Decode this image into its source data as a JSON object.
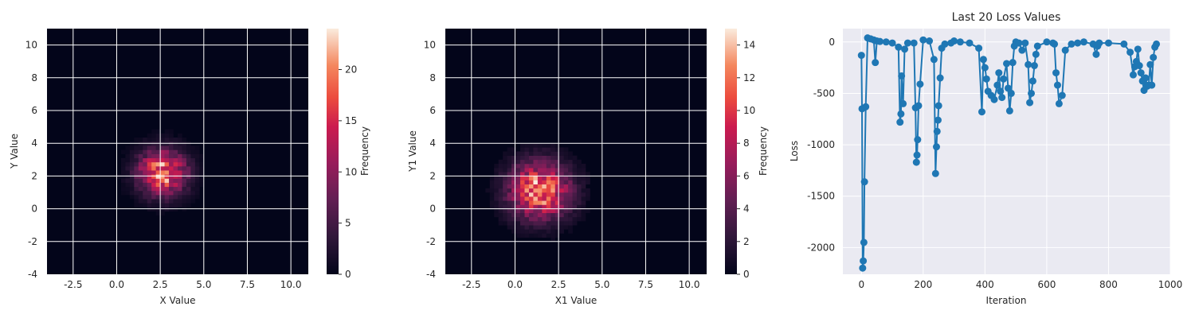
{
  "chart_data": [
    {
      "type": "heatmap",
      "title": "",
      "xlabel": "X Value",
      "ylabel": "Y Value",
      "xlim": [
        -4,
        11
      ],
      "ylim": [
        -4,
        11
      ],
      "xticks": [
        "-2.5",
        "0.0",
        "2.5",
        "5.0",
        "7.5",
        "10.0"
      ],
      "yticks": [
        "-4",
        "-2",
        "0",
        "2",
        "4",
        "6",
        "8",
        "10"
      ],
      "colorbar_label": "Frequency",
      "colorbar_range": [
        0,
        24
      ],
      "colorbar_ticks": [
        "0",
        "5",
        "10",
        "15",
        "20"
      ],
      "grid": true,
      "peak": {
        "x": 2.5,
        "y": 2.1,
        "spread": 0.95,
        "max": 24
      }
    },
    {
      "type": "heatmap",
      "title": "",
      "xlabel": "X1 Value",
      "ylabel": "Y1 Value",
      "xlim": [
        -4,
        11
      ],
      "ylim": [
        -4,
        11
      ],
      "xticks": [
        "-2.5",
        "0.0",
        "2.5",
        "5.0",
        "7.5",
        "10.0"
      ],
      "yticks": [
        "-4",
        "-2",
        "0",
        "2",
        "4",
        "6",
        "8",
        "10"
      ],
      "colorbar_label": "Frequency",
      "colorbar_range": [
        0,
        15
      ],
      "colorbar_ticks": [
        "0",
        "2",
        "4",
        "6",
        "8",
        "10",
        "12",
        "14"
      ],
      "grid": true,
      "peak": {
        "x": 1.3,
        "y": 1.0,
        "spread": 1.2,
        "max": 15
      }
    },
    {
      "type": "line",
      "title": "Last 20 Loss Values",
      "xlabel": "Iteration",
      "ylabel": "Loss",
      "xlim": [
        -60,
        1000
      ],
      "ylim": [
        -2260,
        130
      ],
      "xticks": [
        "0",
        "200",
        "400",
        "600",
        "800",
        "1000"
      ],
      "yticks": [
        "-2000",
        "-1500",
        "-1000",
        "-500",
        "0"
      ],
      "grid": true,
      "x": [
        0,
        2,
        4,
        6,
        8,
        10,
        14,
        20,
        30,
        40,
        45,
        50,
        60,
        80,
        100,
        120,
        125,
        128,
        130,
        135,
        140,
        150,
        170,
        175,
        178,
        180,
        182,
        185,
        190,
        200,
        220,
        235,
        240,
        243,
        245,
        248,
        250,
        255,
        260,
        270,
        290,
        300,
        320,
        350,
        380,
        390,
        395,
        400,
        405,
        410,
        420,
        430,
        440,
        445,
        450,
        455,
        460,
        470,
        475,
        480,
        485,
        490,
        495,
        500,
        510,
        520,
        530,
        540,
        545,
        550,
        555,
        560,
        565,
        570,
        600,
        620,
        625,
        630,
        635,
        640,
        650,
        660,
        680,
        700,
        720,
        750,
        760,
        765,
        770,
        800,
        850,
        870,
        880,
        885,
        890,
        895,
        900,
        905,
        910,
        915,
        920,
        925,
        930,
        935,
        940,
        945,
        950,
        955
      ],
      "y": [
        -130,
        -650,
        -2200,
        -2130,
        -1950,
        -1360,
        -630,
        40,
        30,
        20,
        -200,
        10,
        5,
        0,
        -10,
        -50,
        -780,
        -700,
        -330,
        -600,
        -70,
        -10,
        -10,
        -640,
        -1170,
        -1100,
        -950,
        -620,
        -410,
        20,
        10,
        -170,
        -1280,
        -1020,
        -870,
        -760,
        -620,
        -350,
        -60,
        -20,
        -10,
        10,
        0,
        -10,
        -60,
        -680,
        -170,
        -250,
        -360,
        -480,
        -520,
        -560,
        -420,
        -300,
        -480,
        -540,
        -360,
        -210,
        -450,
        -670,
        -500,
        -200,
        -40,
        0,
        -10,
        -80,
        -10,
        -220,
        -590,
        -500,
        -380,
        -230,
        -120,
        -40,
        0,
        -10,
        -20,
        -300,
        -420,
        -600,
        -520,
        -80,
        -20,
        -10,
        0,
        -20,
        -120,
        -40,
        -10,
        -10,
        -20,
        -100,
        -320,
        -240,
        -190,
        -70,
        -230,
        -300,
        -380,
        -470,
        -350,
        -430,
        -420,
        -220,
        -420,
        -150,
        -50,
        -20
      ]
    }
  ]
}
